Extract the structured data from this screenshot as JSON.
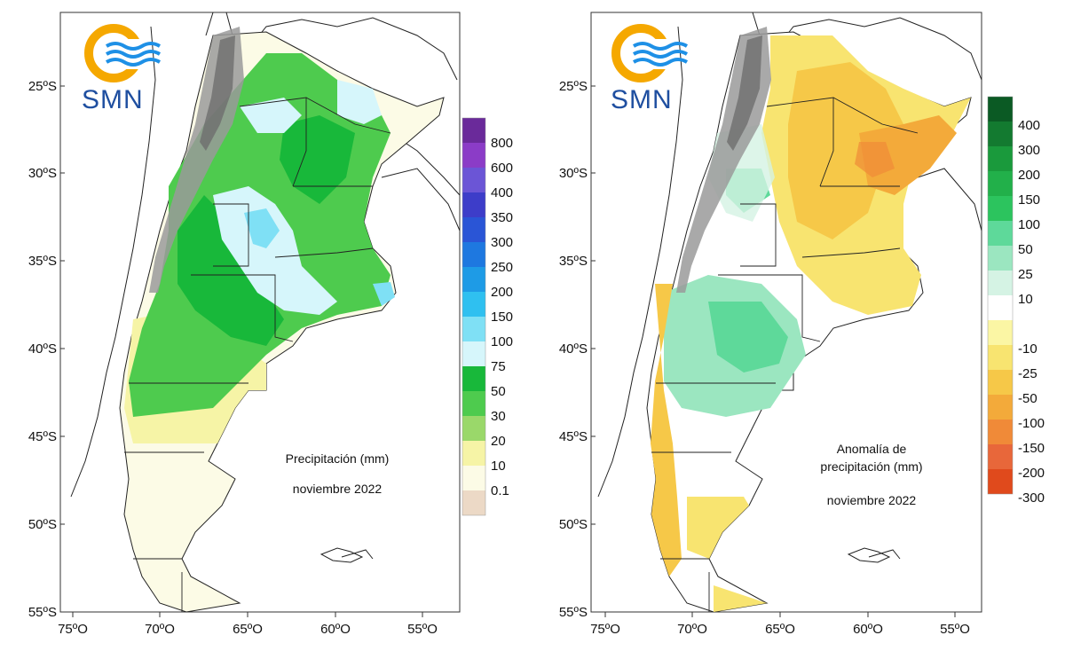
{
  "left_panel": {
    "logo_text": "SMN",
    "caption_lines": [
      "Precipitación (mm)",
      "noviembre 2022"
    ],
    "lat_labels": [
      "25ºS",
      "30ºS",
      "35ºS",
      "40ºS",
      "45ºS",
      "50ºS",
      "55ºS"
    ],
    "lon_labels": [
      "75ºO",
      "70ºO",
      "65ºO",
      "60ºO",
      "55ºO"
    ],
    "legend": [
      {
        "label": "800",
        "color": "#6a2a9a"
      },
      {
        "label": "600",
        "color": "#8b3cc7"
      },
      {
        "label": "400",
        "color": "#6b55d6"
      },
      {
        "label": "350",
        "color": "#3d3dc9"
      },
      {
        "label": "300",
        "color": "#2a55d6"
      },
      {
        "label": "250",
        "color": "#1e78e0"
      },
      {
        "label": "200",
        "color": "#1e9be6"
      },
      {
        "label": "150",
        "color": "#2fc0f0"
      },
      {
        "label": "100",
        "color": "#7fe0f5"
      },
      {
        "label": "75",
        "color": "#d6f6fb"
      },
      {
        "label": "50",
        "color": "#18b83a"
      },
      {
        "label": "30",
        "color": "#4ecb4e"
      },
      {
        "label": "20",
        "color": "#9ad86a"
      },
      {
        "label": "10",
        "color": "#f6f4a6"
      },
      {
        "label": "0.1",
        "color": "#fcfbe6"
      },
      {
        "label": "",
        "color": "#ecd9c6"
      }
    ]
  },
  "right_panel": {
    "logo_text": "SMN",
    "caption_lines": [
      "Anomalía de",
      "precipitación (mm)",
      "noviembre 2022"
    ],
    "lat_labels": [
      "25ºS",
      "30ºS",
      "35ºS",
      "40ºS",
      "45ºS",
      "50ºS",
      "55ºS"
    ],
    "lon_labels": [
      "75ºO",
      "70ºO",
      "65ºO",
      "60ºO",
      "55ºO"
    ],
    "legend": [
      {
        "label": "400",
        "color": "#0b5a24"
      },
      {
        "label": "300",
        "color": "#137a30"
      },
      {
        "label": "200",
        "color": "#1a9a3c"
      },
      {
        "label": "150",
        "color": "#22b04a"
      },
      {
        "label": "100",
        "color": "#2cc45e"
      },
      {
        "label": "50",
        "color": "#5ed99a"
      },
      {
        "label": "25",
        "color": "#9be6c0"
      },
      {
        "label": "10",
        "color": "#d5f3e4"
      },
      {
        "label": "",
        "color": "#ffffff"
      },
      {
        "label": "-10",
        "color": "#fbf6a4"
      },
      {
        "label": "-25",
        "color": "#f8e470"
      },
      {
        "label": "-50",
        "color": "#f6c848"
      },
      {
        "label": "-100",
        "color": "#f3aa3a"
      },
      {
        "label": "-150",
        "color": "#f08a38"
      },
      {
        "label": "-200",
        "color": "#e8673a"
      },
      {
        "label": "-300",
        "color": "#e04a1c"
      }
    ]
  }
}
